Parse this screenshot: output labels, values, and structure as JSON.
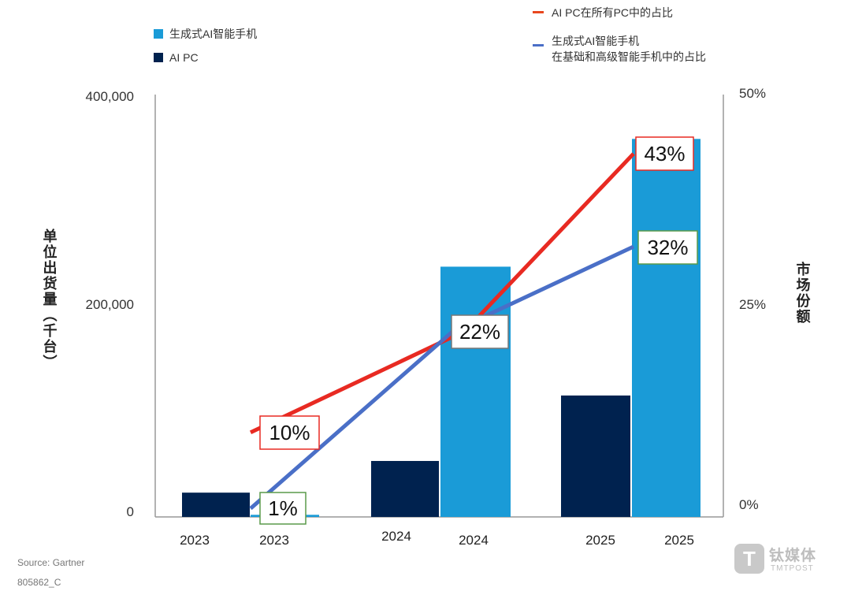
{
  "chart_data": {
    "type": "bar",
    "categories": [
      "2023",
      "2024",
      "2025"
    ],
    "bar_series": [
      {
        "name": "生成式AI智能手机",
        "color": "#1a9bd7",
        "values": [
          2000,
          237000,
          358000
        ]
      },
      {
        "name": "AI PC",
        "color": "#00224f",
        "values": [
          23000,
          53000,
          115000
        ]
      }
    ],
    "line_series": [
      {
        "name": "AI PC在所有PC中的占比",
        "color": "#e82a22",
        "values": [
          10,
          22,
          43
        ]
      },
      {
        "name": "生成式AI智能手机 在基础和高级智能手机中的占比",
        "color": "#4a6fc7",
        "values": [
          1,
          22,
          32
        ]
      }
    ],
    "data_labels": {
      "ai_pc_share": [
        "10%",
        "22%",
        "43%"
      ],
      "phone_share": [
        "1%",
        "",
        "32%"
      ]
    },
    "x_tick_labels": [
      "2023",
      "2023",
      "2024",
      "2024",
      "2025",
      "2025"
    ],
    "y_left": {
      "label": "单位出货量（千台）",
      "ticks": [
        "0",
        "200,000",
        "400,000"
      ],
      "range": [
        0,
        400000
      ]
    },
    "y_right": {
      "label": "市场份额",
      "ticks": [
        "0%",
        "25%",
        "50%"
      ],
      "range": [
        0,
        50
      ]
    },
    "legend": {
      "left": [
        {
          "label": "生成式AI智能手机",
          "color": "#1a9bd7"
        },
        {
          "label": "AI PC",
          "color": "#00224f"
        }
      ],
      "right": [
        {
          "label": "AI PC在所有PC中的占比",
          "color": "#e8471e"
        },
        {
          "label_line1": "生成式AI智能手机",
          "label_line2": "在基础和高级智能手机中的占比",
          "color": "#4a6fc7"
        }
      ]
    },
    "grid": false
  },
  "footer": {
    "source": "Source: Gartner",
    "code": "805862_C"
  },
  "watermark": {
    "name": "钛媒体",
    "sub": "TMTPOST"
  }
}
